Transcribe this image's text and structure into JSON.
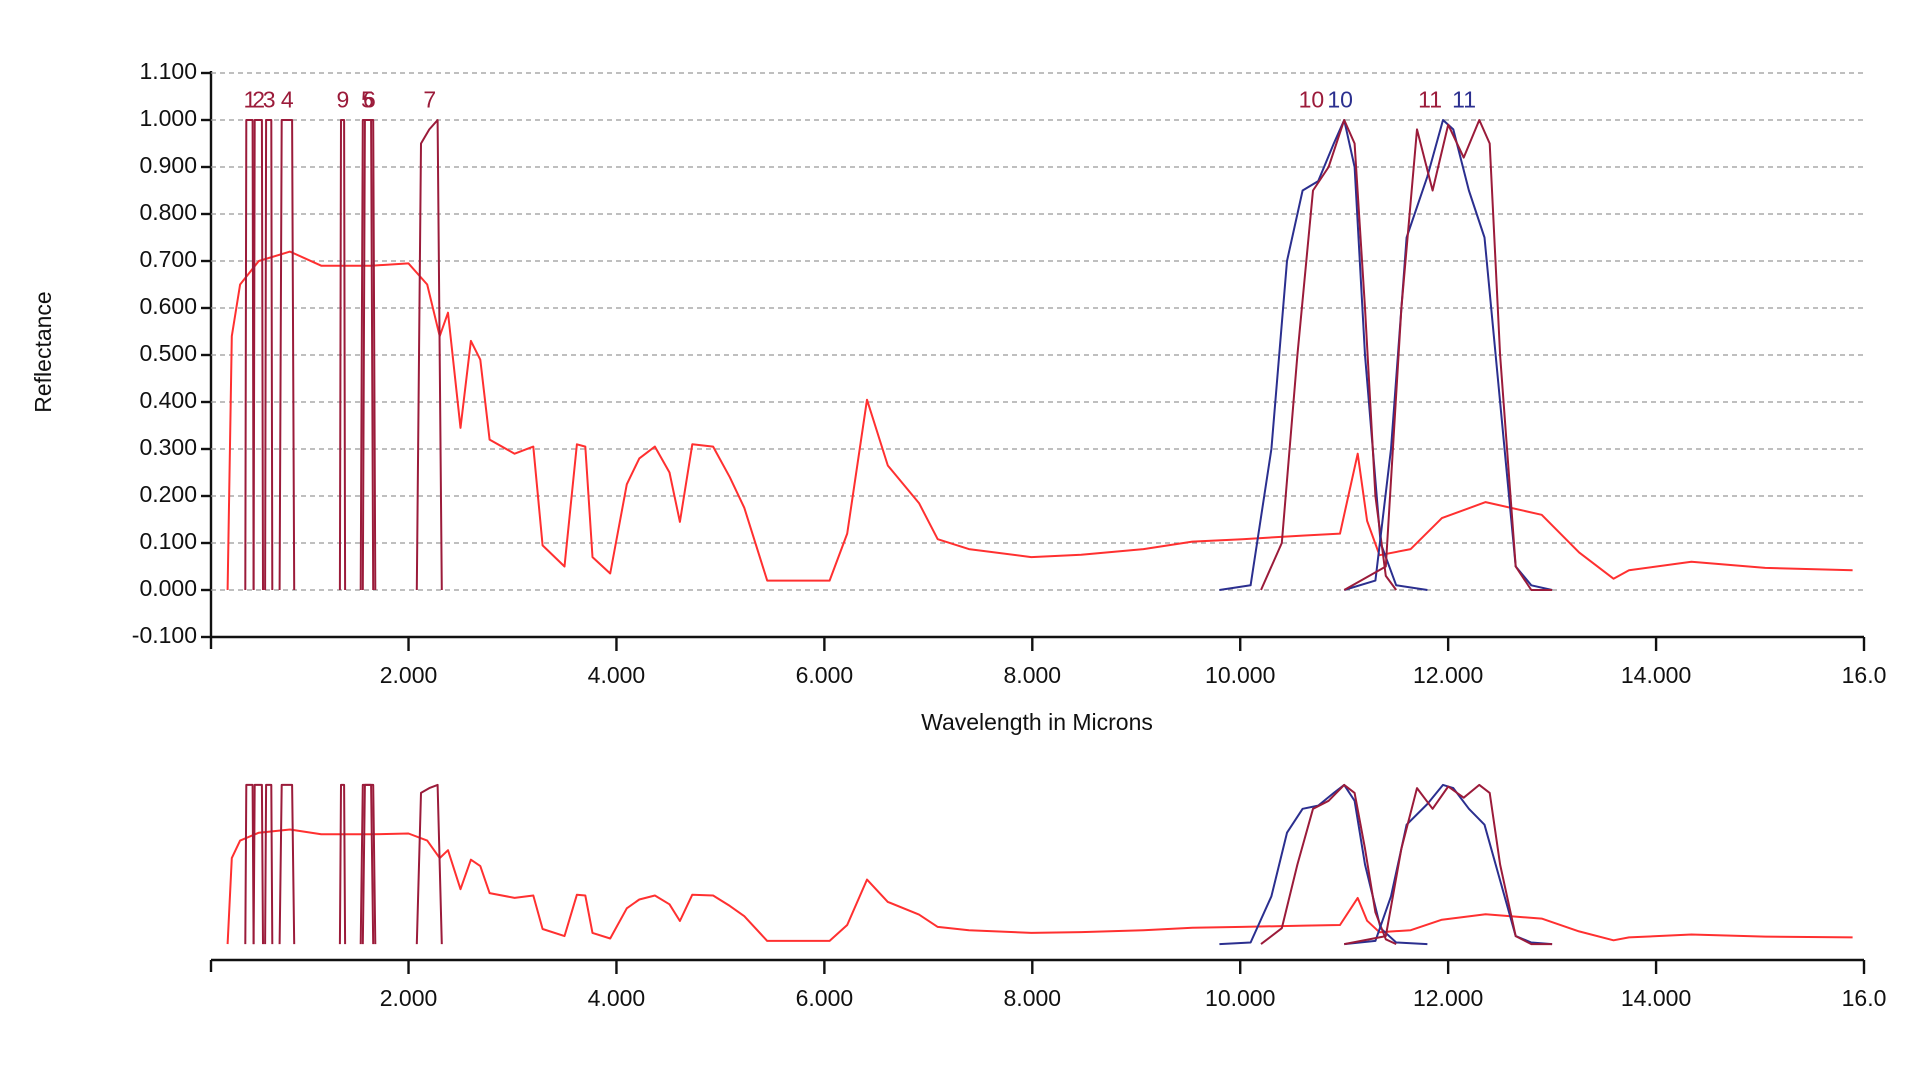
{
  "chart_data": {
    "type": "line",
    "y_label": "Reflectance",
    "x_label": "Wavelength in Microns",
    "xlim": [
      0.1,
      16.0
    ],
    "ylim": [
      -0.1,
      1.1
    ],
    "xticks": [
      {
        "value": 2,
        "label": "2.000"
      },
      {
        "value": 4,
        "label": "4.000"
      },
      {
        "value": 6,
        "label": "6.000"
      },
      {
        "value": 8,
        "label": "8.000"
      },
      {
        "value": 10,
        "label": "10.000"
      },
      {
        "value": 12,
        "label": "12.000"
      },
      {
        "value": 14,
        "label": "14.000"
      },
      {
        "value": 16,
        "label": "16.0"
      }
    ],
    "yticks": [
      {
        "value": -0.1,
        "label": "-0.100"
      },
      {
        "value": 0,
        "label": "0.000"
      },
      {
        "value": 0.1,
        "label": "0.100"
      },
      {
        "value": 0.2,
        "label": "0.200"
      },
      {
        "value": 0.3,
        "label": "0.300"
      },
      {
        "value": 0.4,
        "label": "0.400"
      },
      {
        "value": 0.5,
        "label": "0.500"
      },
      {
        "value": 0.6,
        "label": "0.600"
      },
      {
        "value": 0.7,
        "label": "0.700"
      },
      {
        "value": 0.8,
        "label": "0.800"
      },
      {
        "value": 0.9,
        "label": "0.900"
      },
      {
        "value": 1.0,
        "label": "1.000"
      },
      {
        "value": 1.1,
        "label": "1.100"
      }
    ],
    "grid": true,
    "series": [
      {
        "color": "#ff3030",
        "x": [
          0.26,
          0.3,
          0.38,
          0.56,
          0.86,
          1.16,
          1.64,
          2.0,
          2.18,
          2.3,
          2.38,
          2.5,
          2.6,
          2.69,
          2.78,
          3.02,
          3.2,
          3.29,
          3.5,
          3.62,
          3.7,
          3.77,
          3.94,
          4.1,
          4.22,
          4.37,
          4.51,
          4.61,
          4.73,
          4.93,
          5.09,
          5.23,
          5.45,
          5.77,
          6.05,
          6.22,
          6.41,
          6.61,
          6.91,
          7.09,
          7.39,
          7.99,
          8.47,
          9.07,
          9.54,
          10.02,
          10.62,
          10.96,
          11.13,
          11.22,
          11.34,
          11.64,
          11.94,
          12.36,
          12.9,
          13.26,
          13.59,
          13.74,
          14.34,
          15.05,
          15.89
        ],
        "values": [
          0,
          0.54,
          0.65,
          0.7,
          0.72,
          0.69,
          0.69,
          0.695,
          0.65,
          0.54,
          0.59,
          0.345,
          0.53,
          0.49,
          0.32,
          0.29,
          0.305,
          0.095,
          0.05,
          0.31,
          0.305,
          0.07,
          0.035,
          0.225,
          0.28,
          0.305,
          0.25,
          0.145,
          0.31,
          0.305,
          0.24,
          0.175,
          0.02,
          0.02,
          0.02,
          0.12,
          0.405,
          0.265,
          0.185,
          0.108,
          0.087,
          0.07,
          0.075,
          0.087,
          0.103,
          0.108,
          0.116,
          0.12,
          0.29,
          0.147,
          0.074,
          0.087,
          0.153,
          0.187,
          0.16,
          0.08,
          0.024,
          0.042,
          0.06,
          0.047,
          0.042
        ]
      },
      {
        "color": "#9b1b3a",
        "label": "1",
        "x": [
          0.43,
          0.44,
          0.5,
          0.51
        ],
        "values": [
          0,
          1,
          1,
          0
        ]
      },
      {
        "color": "#9b1b3a",
        "label": "2",
        "x": [
          0.51,
          0.52,
          0.59,
          0.6
        ],
        "values": [
          0,
          1,
          1,
          0
        ]
      },
      {
        "color": "#9b1b3a",
        "label": "3",
        "x": [
          0.62,
          0.63,
          0.68,
          0.69
        ],
        "values": [
          0,
          1,
          1,
          0
        ]
      },
      {
        "color": "#9b1b3a",
        "label": "4",
        "x": [
          0.76,
          0.78,
          0.88,
          0.9
        ],
        "values": [
          0,
          1,
          1,
          0
        ]
      },
      {
        "color": "#9b1b3a",
        "label": "5",
        "x": [
          1.54,
          1.56,
          1.64,
          1.66
        ],
        "values": [
          0,
          1,
          1,
          0
        ]
      },
      {
        "color": "#9b1b3a",
        "label": "9",
        "x": [
          1.34,
          1.35,
          1.38,
          1.39
        ],
        "values": [
          0,
          1,
          1,
          0
        ]
      },
      {
        "color": "#9b1b3a",
        "label": "6",
        "x": [
          1.56,
          1.58,
          1.66,
          1.68
        ],
        "values": [
          0,
          1,
          1,
          0
        ]
      },
      {
        "color": "#9b1b3a",
        "label": "7",
        "x": [
          2.08,
          2.12,
          2.2,
          2.28,
          2.32
        ],
        "values": [
          0,
          0.95,
          0.98,
          1,
          0
        ]
      },
      {
        "color": "#2b2f8f",
        "label": "10",
        "x": [
          9.8,
          10.1,
          10.3,
          10.45,
          10.6,
          10.75,
          10.9,
          11.0,
          11.1,
          11.2,
          11.35,
          11.5,
          11.8
        ],
        "values": [
          0,
          0.01,
          0.3,
          0.7,
          0.85,
          0.87,
          0.95,
          1.0,
          0.9,
          0.5,
          0.1,
          0.01,
          0
        ]
      },
      {
        "color": "#9b1b3a",
        "label": "10",
        "x": [
          10.2,
          10.4,
          10.55,
          10.7,
          10.85,
          11.0,
          11.1,
          11.2,
          11.3,
          11.4,
          11.5
        ],
        "values": [
          0,
          0.1,
          0.5,
          0.85,
          0.9,
          1.0,
          0.95,
          0.6,
          0.2,
          0.03,
          0
        ]
      },
      {
        "color": "#2b2f8f",
        "label": "11",
        "x": [
          11.0,
          11.3,
          11.45,
          11.6,
          11.8,
          11.95,
          12.05,
          12.2,
          12.35,
          12.5,
          12.65,
          12.8,
          13.0
        ],
        "values": [
          0,
          0.02,
          0.3,
          0.75,
          0.88,
          1.0,
          0.98,
          0.85,
          0.75,
          0.4,
          0.05,
          0.01,
          0
        ]
      },
      {
        "color": "#9b1b3a",
        "label": "11",
        "x": [
          11.0,
          11.4,
          11.55,
          11.7,
          11.85,
          12.0,
          12.15,
          12.3,
          12.4,
          12.5,
          12.65,
          12.8,
          13.0
        ],
        "values": [
          0,
          0.05,
          0.6,
          0.98,
          0.85,
          0.99,
          0.92,
          1.0,
          0.95,
          0.5,
          0.05,
          0,
          0
        ]
      }
    ]
  }
}
